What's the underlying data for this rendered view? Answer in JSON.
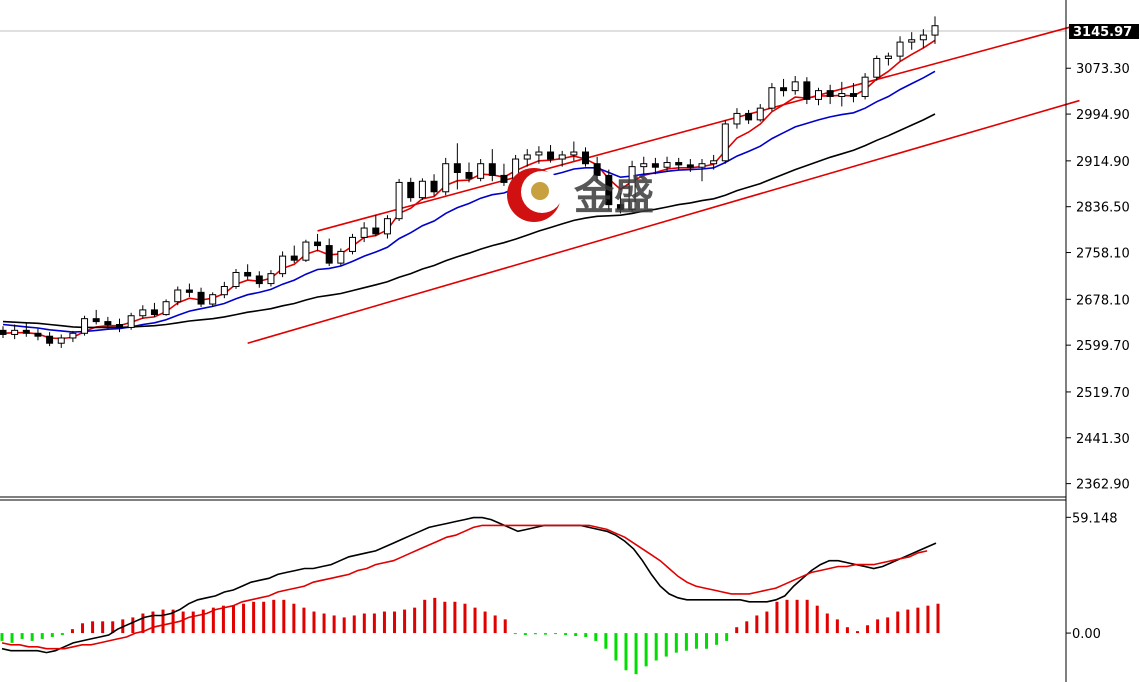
{
  "watermark": {
    "text": "金盛"
  },
  "colors": {
    "background": "#ffffff",
    "candle_up_fill": "#ffffff",
    "candle_down_fill": "#000000",
    "candle_stroke": "#000000",
    "ma_fast": "#e00000",
    "ma_mid": "#0000cc",
    "ma_slow": "#000000",
    "channel": "#e00000",
    "hist_pos": "#e00000",
    "hist_neg": "#00dd00",
    "macd_line": "#000000",
    "signal_line": "#e00000",
    "price_label_bg": "#000000",
    "current_price_line": "#c0c0c0"
  },
  "chart_data": [
    {
      "type": "candlestick",
      "title": "",
      "y_ticks": [
        "3073.30",
        "2994.90",
        "2914.90",
        "2836.50",
        "2758.10",
        "2678.10",
        "2599.70",
        "2519.70",
        "2441.30",
        "2362.90"
      ],
      "ylim": [
        2340,
        3190
      ],
      "last_price": "3145.97",
      "candles": [
        [
          2625,
          2632,
          2612,
          2618
        ],
        [
          2618,
          2635,
          2610,
          2625
        ],
        [
          2625,
          2638,
          2614,
          2620
        ],
        [
          2620,
          2628,
          2608,
          2615
        ],
        [
          2615,
          2622,
          2598,
          2603
        ],
        [
          2603,
          2618,
          2595,
          2612
        ],
        [
          2612,
          2624,
          2605,
          2620
        ],
        [
          2620,
          2650,
          2616,
          2645
        ],
        [
          2645,
          2660,
          2635,
          2640
        ],
        [
          2640,
          2648,
          2628,
          2635
        ],
        [
          2635,
          2645,
          2622,
          2630
        ],
        [
          2630,
          2655,
          2626,
          2650
        ],
        [
          2650,
          2668,
          2645,
          2660
        ],
        [
          2660,
          2672,
          2648,
          2652
        ],
        [
          2652,
          2678,
          2650,
          2674
        ],
        [
          2674,
          2700,
          2668,
          2694
        ],
        [
          2694,
          2705,
          2682,
          2690
        ],
        [
          2690,
          2698,
          2665,
          2670
        ],
        [
          2670,
          2690,
          2665,
          2686
        ],
        [
          2686,
          2708,
          2680,
          2700
        ],
        [
          2700,
          2730,
          2696,
          2724
        ],
        [
          2724,
          2738,
          2712,
          2718
        ],
        [
          2718,
          2726,
          2698,
          2705
        ],
        [
          2705,
          2728,
          2700,
          2722
        ],
        [
          2722,
          2760,
          2716,
          2752
        ],
        [
          2752,
          2770,
          2740,
          2745
        ],
        [
          2745,
          2780,
          2742,
          2776
        ],
        [
          2776,
          2790,
          2760,
          2770
        ],
        [
          2770,
          2782,
          2735,
          2740
        ],
        [
          2740,
          2765,
          2735,
          2760
        ],
        [
          2760,
          2790,
          2755,
          2784
        ],
        [
          2784,
          2810,
          2776,
          2800
        ],
        [
          2800,
          2822,
          2786,
          2790
        ],
        [
          2790,
          2822,
          2782,
          2816
        ],
        [
          2816,
          2884,
          2812,
          2878
        ],
        [
          2878,
          2886,
          2845,
          2852
        ],
        [
          2852,
          2885,
          2848,
          2880
        ],
        [
          2880,
          2892,
          2855,
          2862
        ],
        [
          2862,
          2920,
          2856,
          2910
        ],
        [
          2910,
          2945,
          2866,
          2895
        ],
        [
          2895,
          2912,
          2878,
          2885
        ],
        [
          2885,
          2918,
          2880,
          2910
        ],
        [
          2910,
          2935,
          2880,
          2890
        ],
        [
          2890,
          2910,
          2872,
          2878
        ],
        [
          2878,
          2925,
          2874,
          2918
        ],
        [
          2918,
          2935,
          2905,
          2925
        ],
        [
          2925,
          2940,
          2910,
          2930
        ],
        [
          2930,
          2942,
          2912,
          2918
        ],
        [
          2918,
          2932,
          2905,
          2925
        ],
        [
          2925,
          2948,
          2915,
          2930
        ],
        [
          2930,
          2938,
          2905,
          2910
        ],
        [
          2910,
          2922,
          2880,
          2890
        ],
        [
          2890,
          2900,
          2830,
          2840
        ],
        [
          2840,
          2860,
          2825,
          2832
        ],
        [
          2832,
          2915,
          2828,
          2905
        ],
        [
          2905,
          2922,
          2892,
          2910
        ],
        [
          2910,
          2920,
          2892,
          2904
        ],
        [
          2904,
          2922,
          2896,
          2912
        ],
        [
          2912,
          2920,
          2900,
          2908
        ],
        [
          2908,
          2918,
          2896,
          2904
        ],
        [
          2904,
          2918,
          2880,
          2910
        ],
        [
          2910,
          2925,
          2900,
          2915
        ],
        [
          2915,
          2985,
          2910,
          2978
        ],
        [
          2978,
          3005,
          2970,
          2996
        ],
        [
          2996,
          3002,
          2978,
          2985
        ],
        [
          2985,
          3012,
          2982,
          3005
        ],
        [
          3005,
          3048,
          3000,
          3040
        ],
        [
          3040,
          3055,
          3025,
          3035
        ],
        [
          3035,
          3060,
          3028,
          3050
        ],
        [
          3050,
          3058,
          3012,
          3020
        ],
        [
          3020,
          3040,
          3010,
          3035
        ],
        [
          3035,
          3045,
          3012,
          3025
        ],
        [
          3025,
          3050,
          3008,
          3030
        ],
        [
          3030,
          3048,
          3015,
          3025
        ],
        [
          3025,
          3065,
          3020,
          3058
        ],
        [
          3058,
          3095,
          3052,
          3090
        ],
        [
          3090,
          3100,
          3078,
          3094
        ],
        [
          3094,
          3128,
          3086,
          3118
        ],
        [
          3118,
          3135,
          3105,
          3122
        ],
        [
          3122,
          3140,
          3108,
          3130
        ],
        [
          3130,
          3162,
          3115,
          3146
        ]
      ],
      "series": [
        {
          "values": [
            2620,
            2621,
            2621,
            2619,
            2612,
            2611,
            2613,
            2623,
            2631,
            2633,
            2633,
            2639,
            2646,
            2648,
            2657,
            2672,
            2680,
            2677,
            2680,
            2688,
            2704,
            2711,
            2709,
            2714,
            2731,
            2738,
            2755,
            2762,
            2754,
            2756,
            2769,
            2784,
            2787,
            2797,
            2825,
            2834,
            2850,
            2854,
            2873,
            2881,
            2882,
            2892,
            2891,
            2887,
            2898,
            2907,
            2915,
            2916,
            2919,
            2923,
            2918,
            2908,
            2884,
            2866,
            2880,
            2890,
            2895,
            2901,
            2903,
            2903,
            2905,
            2909,
            2932,
            2954,
            2964,
            2978,
            2999,
            3011,
            3024,
            3022,
            3026,
            3026,
            3027,
            3026,
            3037,
            3055,
            3068,
            3085,
            3097,
            3108,
            3121
          ]
        },
        {
          "values": [
            2635,
            2633,
            2631,
            2629,
            2626,
            2624,
            2622,
            2623,
            2625,
            2627,
            2628,
            2631,
            2635,
            2638,
            2643,
            2651,
            2658,
            2662,
            2666,
            2671,
            2679,
            2686,
            2690,
            2695,
            2704,
            2711,
            2721,
            2729,
            2731,
            2735,
            2743,
            2752,
            2759,
            2767,
            2782,
            2792,
            2804,
            2812,
            2825,
            2835,
            2842,
            2851,
            2857,
            2860,
            2868,
            2876,
            2884,
            2890,
            2895,
            2901,
            2903,
            2903,
            2895,
            2887,
            2889,
            2892,
            2894,
            2897,
            2899,
            2900,
            2901,
            2903,
            2912,
            2923,
            2931,
            2940,
            2953,
            2963,
            2973,
            2979,
            2985,
            2990,
            2994,
            2997,
            3005,
            3016,
            3025,
            3037,
            3047,
            3057,
            3068
          ]
        },
        {
          "values": [
            2640,
            2639,
            2638,
            2637,
            2635,
            2633,
            2631,
            2630,
            2630,
            2630,
            2630,
            2631,
            2632,
            2633,
            2635,
            2638,
            2641,
            2643,
            2645,
            2648,
            2652,
            2656,
            2659,
            2662,
            2667,
            2671,
            2677,
            2682,
            2685,
            2688,
            2693,
            2698,
            2703,
            2708,
            2716,
            2722,
            2730,
            2736,
            2744,
            2751,
            2757,
            2764,
            2770,
            2775,
            2781,
            2788,
            2795,
            2801,
            2807,
            2813,
            2817,
            2820,
            2821,
            2822,
            2825,
            2829,
            2832,
            2836,
            2840,
            2843,
            2847,
            2850,
            2856,
            2864,
            2870,
            2876,
            2884,
            2892,
            2900,
            2907,
            2914,
            2921,
            2927,
            2933,
            2941,
            2950,
            2958,
            2967,
            2976,
            2985,
            2995
          ]
        }
      ],
      "channel_lines": [
        {
          "from": [
            27,
            2795
          ],
          "to": [
            100,
            3148
          ]
        },
        {
          "from": [
            21,
            2603
          ],
          "to": [
            100,
            3018
          ]
        }
      ]
    },
    {
      "type": "bar",
      "y_ticks": [
        "59.148",
        "0.00"
      ],
      "ylim": [
        -25,
        68
      ],
      "values": [
        -4,
        -5,
        -3,
        -4,
        -3,
        -2,
        -1,
        2,
        5,
        6,
        6,
        6,
        7,
        8,
        10,
        11,
        12,
        12,
        11,
        11,
        12,
        13,
        14,
        14,
        15,
        16,
        16,
        17,
        17,
        15,
        13,
        11,
        10,
        9,
        8,
        9,
        10,
        10,
        11,
        11,
        12,
        13,
        17,
        18,
        16,
        16,
        15,
        13,
        11,
        9,
        7,
        -0.4,
        -1,
        -0.6,
        -0.8,
        -0.5,
        -1,
        -1.5,
        -2,
        -4,
        -8,
        -14,
        -19,
        -21,
        -17,
        -14,
        -12,
        -10,
        -9,
        -8,
        -8,
        -6,
        -4,
        3,
        6,
        9,
        11,
        16,
        17,
        17,
        17,
        14,
        10,
        7,
        3,
        1,
        4,
        7,
        8,
        11,
        12,
        13,
        14,
        15
      ],
      "macd": [
        -8,
        -9,
        -9,
        -9,
        -9,
        -10,
        -9,
        -7,
        -5,
        -4,
        -3,
        -2,
        -1,
        2,
        4,
        6,
        8,
        9,
        9,
        10,
        12,
        15,
        17,
        18,
        19,
        21,
        22,
        24,
        26,
        27,
        28,
        30,
        31,
        32,
        33,
        33,
        34,
        35,
        37,
        39,
        40,
        41,
        42,
        44,
        46,
        48,
        50,
        52,
        54,
        55,
        56,
        57,
        58,
        59,
        59,
        58,
        56,
        54,
        52,
        53,
        54,
        55,
        55,
        55,
        55,
        55,
        54,
        53,
        52,
        50,
        47,
        43,
        37,
        30,
        24,
        20,
        18,
        17,
        17,
        17,
        17,
        17,
        17,
        17,
        16,
        16,
        16,
        17,
        19,
        24,
        28,
        32,
        35,
        37,
        37,
        36,
        35,
        34,
        33,
        34,
        36,
        38,
        40,
        42,
        44,
        46
      ],
      "signal": [
        -5,
        -6,
        -6,
        -7,
        -7,
        -8,
        -8,
        -8,
        -7,
        -6,
        -6,
        -5,
        -4,
        -3,
        -2,
        0,
        1,
        3,
        4,
        5,
        6,
        8,
        9,
        10,
        12,
        13,
        14,
        16,
        17,
        18,
        19,
        21,
        22,
        23,
        24,
        26,
        27,
        28,
        29,
        30,
        32,
        33,
        35,
        36,
        37,
        39,
        41,
        43,
        45,
        47,
        49,
        50,
        52,
        54,
        55,
        55,
        55,
        55,
        55,
        55,
        55,
        55,
        55,
        55,
        55,
        55,
        55,
        54,
        53,
        51,
        49,
        46,
        43,
        40,
        37,
        33,
        29,
        26,
        24,
        23,
        22,
        21,
        20,
        20,
        20,
        21,
        22,
        23,
        25,
        27,
        29,
        31,
        32,
        33,
        34,
        34,
        35,
        35,
        35,
        36,
        37,
        38,
        39,
        41,
        42
      ]
    }
  ]
}
